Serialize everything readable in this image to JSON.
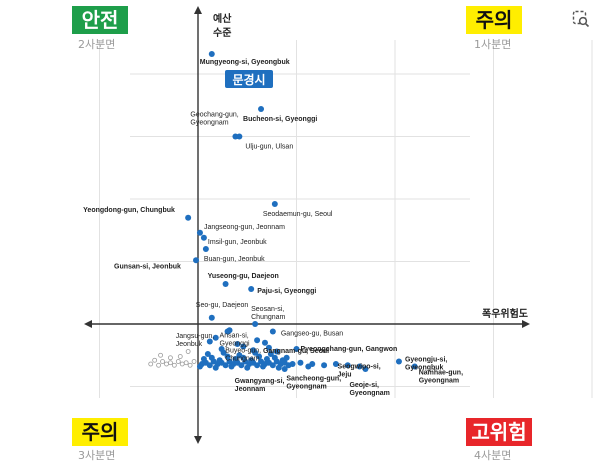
{
  "colors": {
    "dot": "#1f6fbf",
    "grid": "#e2e2e2",
    "axis": "#333333",
    "safe_bg": "#1e9e4a",
    "caution_bg": "#ffee00",
    "danger_bg": "#e8262a",
    "highlight_bg": "#1f6fbf"
  },
  "quadrants": {
    "q2": {
      "label": "안전",
      "sub": "2사분면"
    },
    "q1": {
      "label": "주의",
      "sub": "1사분면"
    },
    "q3": {
      "label": "주의",
      "sub": "3사분면"
    },
    "q4": {
      "label": "고위험",
      "sub": "4사분면"
    }
  },
  "top_right_icon": "image-search-icon",
  "chart_data": {
    "type": "scatter",
    "title": "",
    "xlabel": "폭우위험도",
    "ylabel": "예산 수준",
    "grid": true,
    "xlim": [
      -1.0,
      2.3
    ],
    "ylim": [
      -1.0,
      2.3
    ],
    "highlight": {
      "name": "Mungyeong-si, Gyeongbuk",
      "label": "문경시"
    },
    "labeled_points": [
      {
        "name": "Mungyeong-si, Gyeongbuk",
        "x": 0.07,
        "y": 2.16,
        "bold": true
      },
      {
        "name": "Bucheon-si, Gyeonggi",
        "x": 0.32,
        "y": 1.72,
        "bold": true
      },
      {
        "name": "Geochang-gun, Gyeongnam",
        "x": 0.19,
        "y": 1.5,
        "bold": false
      },
      {
        "name": "Ulju-gun, Ulsan",
        "x": 0.21,
        "y": 1.5,
        "bold": false
      },
      {
        "name": "Seodaemun-gu, Seoul",
        "x": 0.39,
        "y": 0.96,
        "bold": false
      },
      {
        "name": "Yeongdong-gun, Chungbuk",
        "x": -0.05,
        "y": 0.85,
        "bold": true
      },
      {
        "name": "Jangseong-gun, Jeonnam",
        "x": 0.01,
        "y": 0.73,
        "bold": false
      },
      {
        "name": "Imsil-gun, Jeonbuk",
        "x": 0.03,
        "y": 0.69,
        "bold": false
      },
      {
        "name": "Buan-gun, Jeonbuk",
        "x": 0.04,
        "y": 0.6,
        "bold": false
      },
      {
        "name": "Gunsan-si, Jeonbuk",
        "x": -0.01,
        "y": 0.51,
        "bold": true
      },
      {
        "name": "Yuseong-gu, Daejeon",
        "x": 0.14,
        "y": 0.32,
        "bold": true
      },
      {
        "name": "Paju-si, Gyeonggi",
        "x": 0.27,
        "y": 0.28,
        "bold": true
      },
      {
        "name": "Seo-gu, Daejeon",
        "x": 0.07,
        "y": 0.05,
        "bold": false
      },
      {
        "name": "Seosan-si, Chungnam",
        "x": 0.29,
        "y": 0.0,
        "bold": false
      },
      {
        "name": "Ansan-si, Gyeonggi",
        "x": 0.15,
        "y": -0.06,
        "bold": false
      },
      {
        "name": "Gangseo-gu, Busan",
        "x": 0.38,
        "y": -0.06,
        "bold": false
      },
      {
        "name": "Jangsu-gun, Jeonbuk",
        "x": 0.09,
        "y": -0.11,
        "bold": false
      },
      {
        "name": "Gangnam-gu, Seoul",
        "x": 0.34,
        "y": -0.15,
        "bold": true
      },
      {
        "name": "Buyeo-gun, Chungnam",
        "x": 0.23,
        "y": -0.18,
        "bold": false
      },
      {
        "name": "Pyeongchang-gun, Gangwon",
        "x": 0.5,
        "y": -0.2,
        "bold": true
      },
      {
        "name": "Seogwipo-si, Jeju",
        "x": 0.82,
        "y": -0.34,
        "bold": true
      },
      {
        "name": "Gyeongju-si, Gyeongbuk",
        "x": 1.02,
        "y": -0.3,
        "bold": true
      },
      {
        "name": "Namhae-gun, Gyeongnam",
        "x": 1.1,
        "y": -0.34,
        "bold": true
      },
      {
        "name": "Gwangyang-si, Jeonnam",
        "x": 0.44,
        "y": -0.36,
        "bold": true
      },
      {
        "name": "Sancheong-gun, Gyeongnam",
        "x": 0.56,
        "y": -0.34,
        "bold": true
      },
      {
        "name": "Geoje-si, Gyeongnam",
        "x": 0.85,
        "y": -0.36,
        "bold": true
      }
    ],
    "cluster_points": [
      [
        0.02,
        -0.32
      ],
      [
        0.04,
        -0.31
      ],
      [
        0.06,
        -0.33
      ],
      [
        0.08,
        -0.3
      ],
      [
        0.1,
        -0.32
      ],
      [
        0.12,
        -0.31
      ],
      [
        0.14,
        -0.33
      ],
      [
        0.16,
        -0.3
      ],
      [
        0.18,
        -0.32
      ],
      [
        0.2,
        -0.31
      ],
      [
        0.22,
        -0.33
      ],
      [
        0.24,
        -0.3
      ],
      [
        0.26,
        -0.32
      ],
      [
        0.28,
        -0.31
      ],
      [
        0.3,
        -0.33
      ],
      [
        0.32,
        -0.3
      ],
      [
        0.34,
        -0.32
      ],
      [
        0.36,
        -0.31
      ],
      [
        0.38,
        -0.33
      ],
      [
        0.4,
        -0.3
      ],
      [
        0.42,
        -0.32
      ],
      [
        0.44,
        -0.31
      ],
      [
        0.46,
        -0.33
      ],
      [
        0.48,
        -0.32
      ],
      [
        0.03,
        -0.28
      ],
      [
        0.07,
        -0.27
      ],
      [
        0.11,
        -0.29
      ],
      [
        0.15,
        -0.26
      ],
      [
        0.19,
        -0.28
      ],
      [
        0.23,
        -0.27
      ],
      [
        0.27,
        -0.29
      ],
      [
        0.31,
        -0.26
      ],
      [
        0.35,
        -0.28
      ],
      [
        0.39,
        -0.27
      ],
      [
        0.43,
        -0.29
      ],
      [
        0.05,
        -0.24
      ],
      [
        0.13,
        -0.23
      ],
      [
        0.21,
        -0.25
      ],
      [
        0.29,
        -0.23
      ],
      [
        0.37,
        -0.24
      ],
      [
        0.45,
        -0.27
      ],
      [
        0.01,
        -0.34
      ],
      [
        0.09,
        -0.35
      ],
      [
        0.17,
        -0.34
      ],
      [
        0.25,
        -0.35
      ],
      [
        0.33,
        -0.34
      ],
      [
        0.41,
        -0.35
      ],
      [
        0.12,
        -0.2
      ],
      [
        0.28,
        -0.21
      ],
      [
        0.36,
        -0.19
      ],
      [
        0.2,
        -0.16
      ],
      [
        0.3,
        -0.13
      ],
      [
        0.52,
        -0.31
      ],
      [
        0.58,
        -0.32
      ],
      [
        0.64,
        -0.33
      ],
      [
        0.7,
        -0.32
      ],
      [
        0.76,
        -0.33
      ],
      [
        0.06,
        -0.14
      ],
      [
        0.16,
        -0.05
      ],
      [
        0.4,
        -0.22
      ]
    ],
    "faint_points": [
      [
        -0.24,
        -0.32
      ],
      [
        -0.22,
        -0.29
      ],
      [
        -0.2,
        -0.33
      ],
      [
        -0.18,
        -0.3
      ],
      [
        -0.16,
        -0.32
      ],
      [
        -0.14,
        -0.31
      ],
      [
        -0.12,
        -0.33
      ],
      [
        -0.1,
        -0.3
      ],
      [
        -0.08,
        -0.32
      ],
      [
        -0.06,
        -0.31
      ],
      [
        -0.04,
        -0.33
      ],
      [
        -0.02,
        -0.3
      ],
      [
        -0.19,
        -0.25
      ],
      [
        -0.09,
        -0.26
      ],
      [
        -0.05,
        -0.22
      ],
      [
        -0.14,
        -0.27
      ]
    ]
  }
}
